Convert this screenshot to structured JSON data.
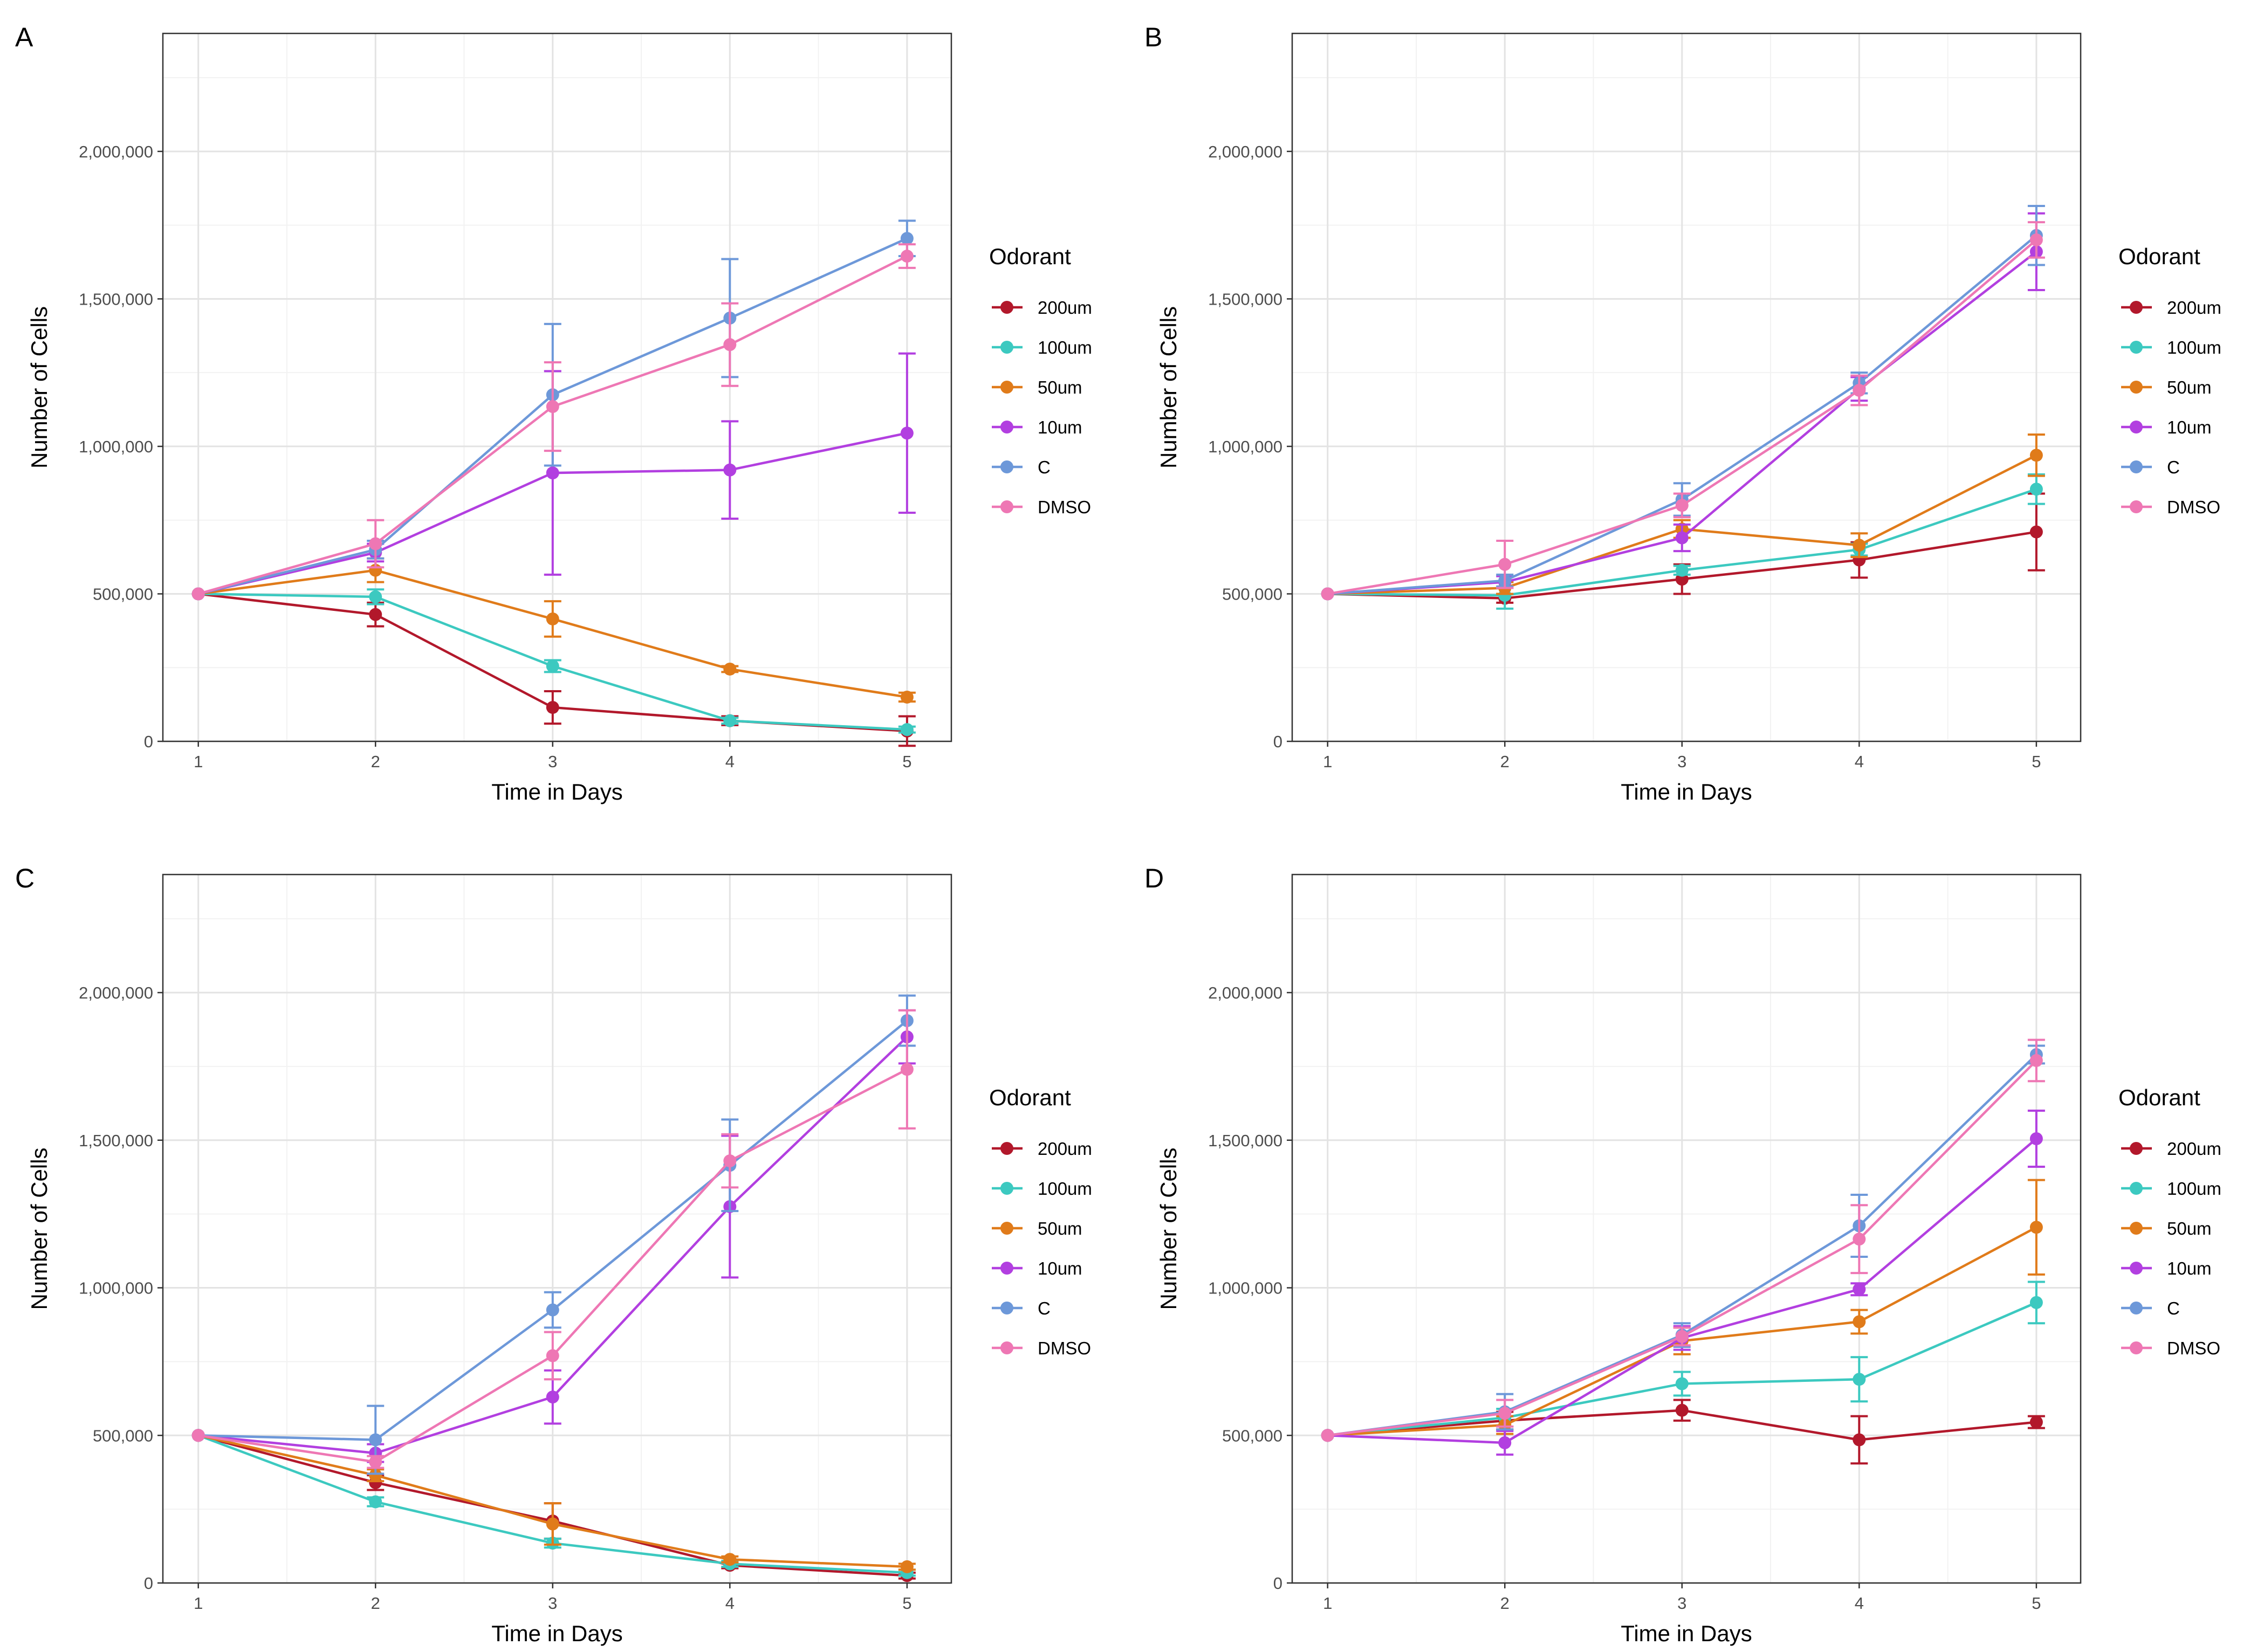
{
  "figure": {
    "series_colors": {
      "200um": "#B2182B",
      "100um": "#3CC9C0",
      "50um": "#E07B1A",
      "10um": "#B23FE0",
      "C": "#6D98D9",
      "DMSO": "#EE77B4"
    }
  },
  "chart_data": [
    {
      "panel": "A",
      "type": "line",
      "xlabel": "Time in Days",
      "ylabel": "Number of Cells",
      "x": [
        1,
        2,
        3,
        4,
        5
      ],
      "xticks": [
        "1",
        "2",
        "3",
        "4",
        "5"
      ],
      "yticks": [
        "0",
        "500,000",
        "1,000,000",
        "1,500,000",
        "2,000,000"
      ],
      "yticks_values": [
        0,
        500000,
        1000000,
        1500000,
        2000000
      ],
      "xlim": [
        0.8,
        5.25
      ],
      "ylim": [
        0,
        2400000
      ],
      "grid": true,
      "legend": {
        "title": "Odorant",
        "position": "right",
        "labels": [
          "200um",
          "100um",
          "50um",
          "10um",
          "C",
          "DMSO"
        ]
      },
      "series": [
        {
          "name": "200um",
          "values": [
            500000,
            430000,
            115000,
            70000,
            35000
          ],
          "err": [
            0,
            40000,
            55000,
            15000,
            50000
          ]
        },
        {
          "name": "100um",
          "values": [
            500000,
            490000,
            255000,
            70000,
            40000
          ],
          "err": [
            0,
            25000,
            20000,
            10000,
            10000
          ]
        },
        {
          "name": "50um",
          "values": [
            500000,
            580000,
            415000,
            245000,
            150000
          ],
          "err": [
            0,
            40000,
            60000,
            10000,
            15000
          ]
        },
        {
          "name": "10um",
          "values": [
            500000,
            640000,
            910000,
            920000,
            1045000
          ],
          "err": [
            0,
            30000,
            345000,
            165000,
            270000
          ]
        },
        {
          "name": "C",
          "values": [
            500000,
            650000,
            1175000,
            1435000,
            1705000
          ],
          "err": [
            0,
            30000,
            240000,
            200000,
            60000
          ]
        },
        {
          "name": "DMSO",
          "values": [
            500000,
            670000,
            1135000,
            1345000,
            1645000
          ],
          "err": [
            0,
            80000,
            150000,
            140000,
            40000
          ]
        }
      ]
    },
    {
      "panel": "B",
      "type": "line",
      "xlabel": "Time in Days",
      "ylabel": "Number of Cells",
      "x": [
        1,
        2,
        3,
        4,
        5
      ],
      "xticks": [
        "1",
        "2",
        "3",
        "4",
        "5"
      ],
      "yticks": [
        "0",
        "500,000",
        "1,000,000",
        "1,500,000",
        "2,000,000"
      ],
      "yticks_values": [
        0,
        500000,
        1000000,
        1500000,
        2000000
      ],
      "xlim": [
        0.8,
        5.25
      ],
      "ylim": [
        0,
        2400000
      ],
      "grid": true,
      "legend": {
        "title": "Odorant",
        "position": "right",
        "labels": [
          "200um",
          "100um",
          "50um",
          "10um",
          "C",
          "DMSO"
        ]
      },
      "series": [
        {
          "name": "200um",
          "values": [
            500000,
            485000,
            550000,
            615000,
            710000
          ],
          "err": [
            0,
            15000,
            50000,
            60000,
            130000
          ]
        },
        {
          "name": "100um",
          "values": [
            500000,
            495000,
            580000,
            650000,
            855000
          ],
          "err": [
            0,
            45000,
            15000,
            20000,
            50000
          ]
        },
        {
          "name": "50um",
          "values": [
            500000,
            520000,
            720000,
            665000,
            970000
          ],
          "err": [
            0,
            20000,
            30000,
            40000,
            70000
          ]
        },
        {
          "name": "10um",
          "values": [
            500000,
            540000,
            690000,
            1195000,
            1660000
          ],
          "err": [
            0,
            20000,
            45000,
            40000,
            130000
          ]
        },
        {
          "name": "C",
          "values": [
            500000,
            545000,
            820000,
            1215000,
            1715000
          ],
          "err": [
            0,
            20000,
            55000,
            35000,
            100000
          ]
        },
        {
          "name": "DMSO",
          "values": [
            500000,
            600000,
            800000,
            1190000,
            1700000
          ],
          "err": [
            0,
            80000,
            40000,
            50000,
            60000
          ]
        }
      ]
    },
    {
      "panel": "C",
      "type": "line",
      "xlabel": "Time in Days",
      "ylabel": "Number of Cells",
      "x": [
        1,
        2,
        3,
        4,
        5
      ],
      "xticks": [
        "1",
        "2",
        "3",
        "4",
        "5"
      ],
      "yticks": [
        "0",
        "500,000",
        "1,000,000",
        "1,500,000",
        "2,000,000"
      ],
      "yticks_values": [
        0,
        500000,
        1000000,
        1500000,
        2000000
      ],
      "xlim": [
        0.8,
        5.25
      ],
      "ylim": [
        0,
        2400000
      ],
      "grid": true,
      "legend": {
        "title": "Odorant",
        "position": "right",
        "labels": [
          "200um",
          "100um",
          "50um",
          "10um",
          "C",
          "DMSO"
        ]
      },
      "series": [
        {
          "name": "200um",
          "values": [
            500000,
            340000,
            210000,
            60000,
            25000
          ],
          "err": [
            0,
            25000,
            60000,
            10000,
            10000
          ]
        },
        {
          "name": "100um",
          "values": [
            500000,
            275000,
            135000,
            65000,
            35000
          ],
          "err": [
            0,
            15000,
            15000,
            10000,
            10000
          ]
        },
        {
          "name": "50um",
          "values": [
            500000,
            365000,
            200000,
            80000,
            55000
          ],
          "err": [
            0,
            20000,
            70000,
            10000,
            10000
          ]
        },
        {
          "name": "10um",
          "values": [
            500000,
            440000,
            630000,
            1275000,
            1850000
          ],
          "err": [
            0,
            30000,
            90000,
            240000,
            90000
          ]
        },
        {
          "name": "C",
          "values": [
            500000,
            485000,
            925000,
            1415000,
            1905000
          ],
          "err": [
            0,
            115000,
            60000,
            155000,
            85000
          ]
        },
        {
          "name": "DMSO",
          "values": [
            500000,
            410000,
            770000,
            1430000,
            1740000
          ],
          "err": [
            0,
            20000,
            80000,
            90000,
            200000
          ]
        }
      ]
    },
    {
      "panel": "D",
      "type": "line",
      "xlabel": "Time in Days",
      "ylabel": "Number of Cells",
      "x": [
        1,
        2,
        3,
        4,
        5
      ],
      "xticks": [
        "1",
        "2",
        "3",
        "4",
        "5"
      ],
      "yticks": [
        "0",
        "500,000",
        "1,000,000",
        "1,500,000",
        "2,000,000"
      ],
      "yticks_values": [
        0,
        500000,
        1000000,
        1500000,
        2000000
      ],
      "xlim": [
        0.8,
        5.25
      ],
      "ylim": [
        0,
        2400000
      ],
      "grid": true,
      "legend": {
        "title": "Odorant",
        "position": "right",
        "labels": [
          "200um",
          "100um",
          "50um",
          "10um",
          "C",
          "DMSO"
        ]
      },
      "series": [
        {
          "name": "200um",
          "values": [
            500000,
            550000,
            585000,
            485000,
            545000
          ],
          "err": [
            0,
            30000,
            35000,
            80000,
            20000
          ]
        },
        {
          "name": "100um",
          "values": [
            500000,
            560000,
            675000,
            690000,
            950000
          ],
          "err": [
            0,
            30000,
            40000,
            75000,
            70000
          ]
        },
        {
          "name": "50um",
          "values": [
            500000,
            535000,
            820000,
            885000,
            1205000
          ],
          "err": [
            0,
            30000,
            45000,
            40000,
            160000
          ]
        },
        {
          "name": "10um",
          "values": [
            500000,
            475000,
            830000,
            995000,
            1505000
          ],
          "err": [
            0,
            40000,
            40000,
            20000,
            95000
          ]
        },
        {
          "name": "C",
          "values": [
            500000,
            580000,
            840000,
            1210000,
            1790000
          ],
          "err": [
            0,
            60000,
            40000,
            105000,
            30000
          ]
        },
        {
          "name": "DMSO",
          "values": [
            500000,
            575000,
            835000,
            1165000,
            1770000
          ],
          "err": [
            0,
            45000,
            30000,
            115000,
            70000
          ]
        }
      ]
    }
  ]
}
